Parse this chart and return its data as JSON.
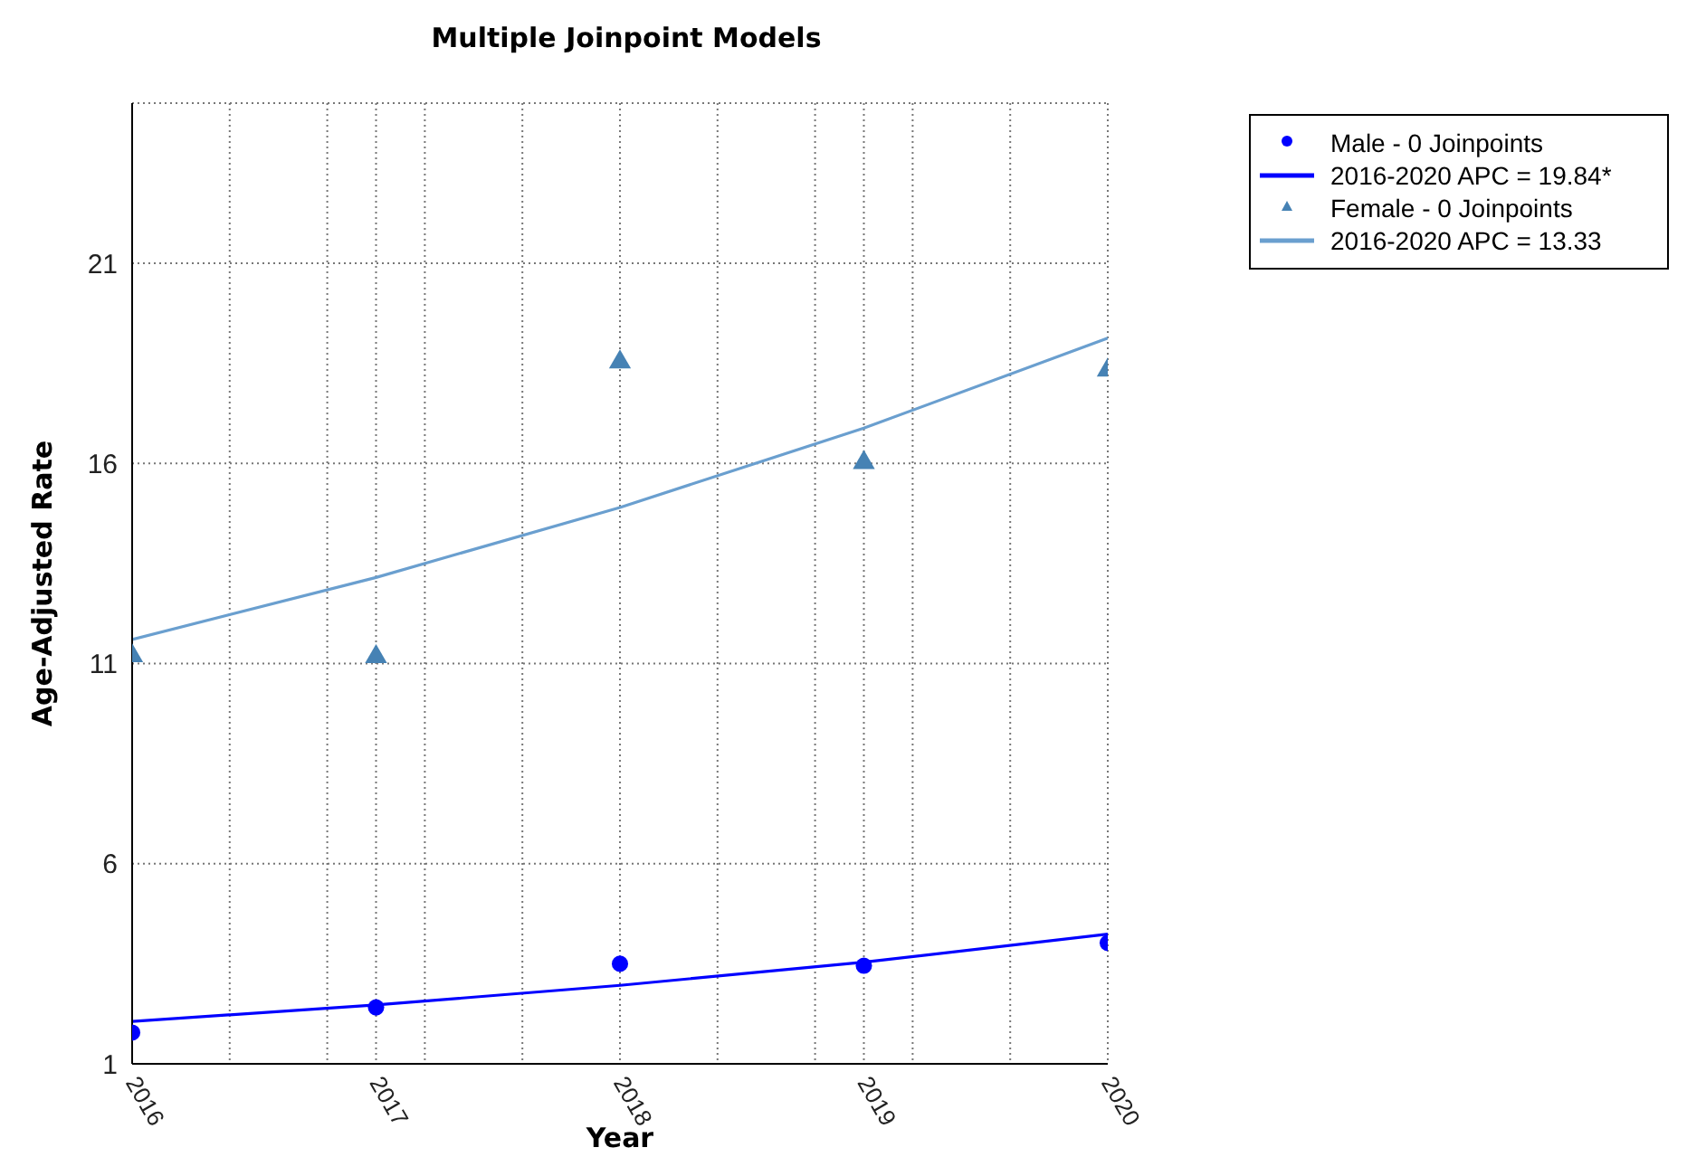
{
  "chart_data": {
    "type": "scatter",
    "title": "Multiple Joinpoint Models",
    "xlabel": "Year",
    "ylabel": "Age-Adjusted Rate",
    "x": [
      2016,
      2017,
      2018,
      2019,
      2020
    ],
    "series": [
      {
        "name": "Male - 0 Joinpoints",
        "color": "#0000ff",
        "marker": "circle",
        "values": [
          1.78,
          2.41,
          3.5,
          3.45,
          4.02
        ]
      },
      {
        "name": "2016-2020 APC  = 19.84*",
        "type": "line",
        "color": "#0000ff",
        "marker": "none",
        "line_style": "solid",
        "values": [
          2.06,
          2.47,
          2.96,
          3.54,
          4.24
        ]
      },
      {
        "name": "Female - 0 Joinpoints",
        "color": "#4682b4",
        "marker": "triangle",
        "values": [
          11.19,
          11.17,
          18.53,
          16.02,
          18.33
        ]
      },
      {
        "name": "2016-2020 APC  = 13.33",
        "type": "line",
        "color": "#6a9fcf",
        "marker": "none",
        "line_style": "solid",
        "values": [
          11.6,
          13.15,
          14.9,
          16.88,
          19.13
        ]
      }
    ],
    "xlim": [
      2016,
      2020
    ],
    "xticks": [
      2016,
      {
        "value": 2016.4,
        "label": null
      },
      {
        "value": 2016.8,
        "label": null
      },
      2017,
      {
        "value": 2017.2,
        "label": null
      },
      {
        "value": 2017.6,
        "label": null
      },
      2018,
      {
        "value": 2018.4,
        "label": null
      },
      {
        "value": 2018.8,
        "label": null
      },
      2019,
      {
        "value": 2019.2,
        "label": null
      },
      {
        "value": 2019.6,
        "label": null
      },
      2020
    ],
    "ylim": [
      1,
      25
    ],
    "yticks": [
      1,
      6,
      11,
      16,
      21
    ],
    "grid": true,
    "legend": "top right"
  }
}
